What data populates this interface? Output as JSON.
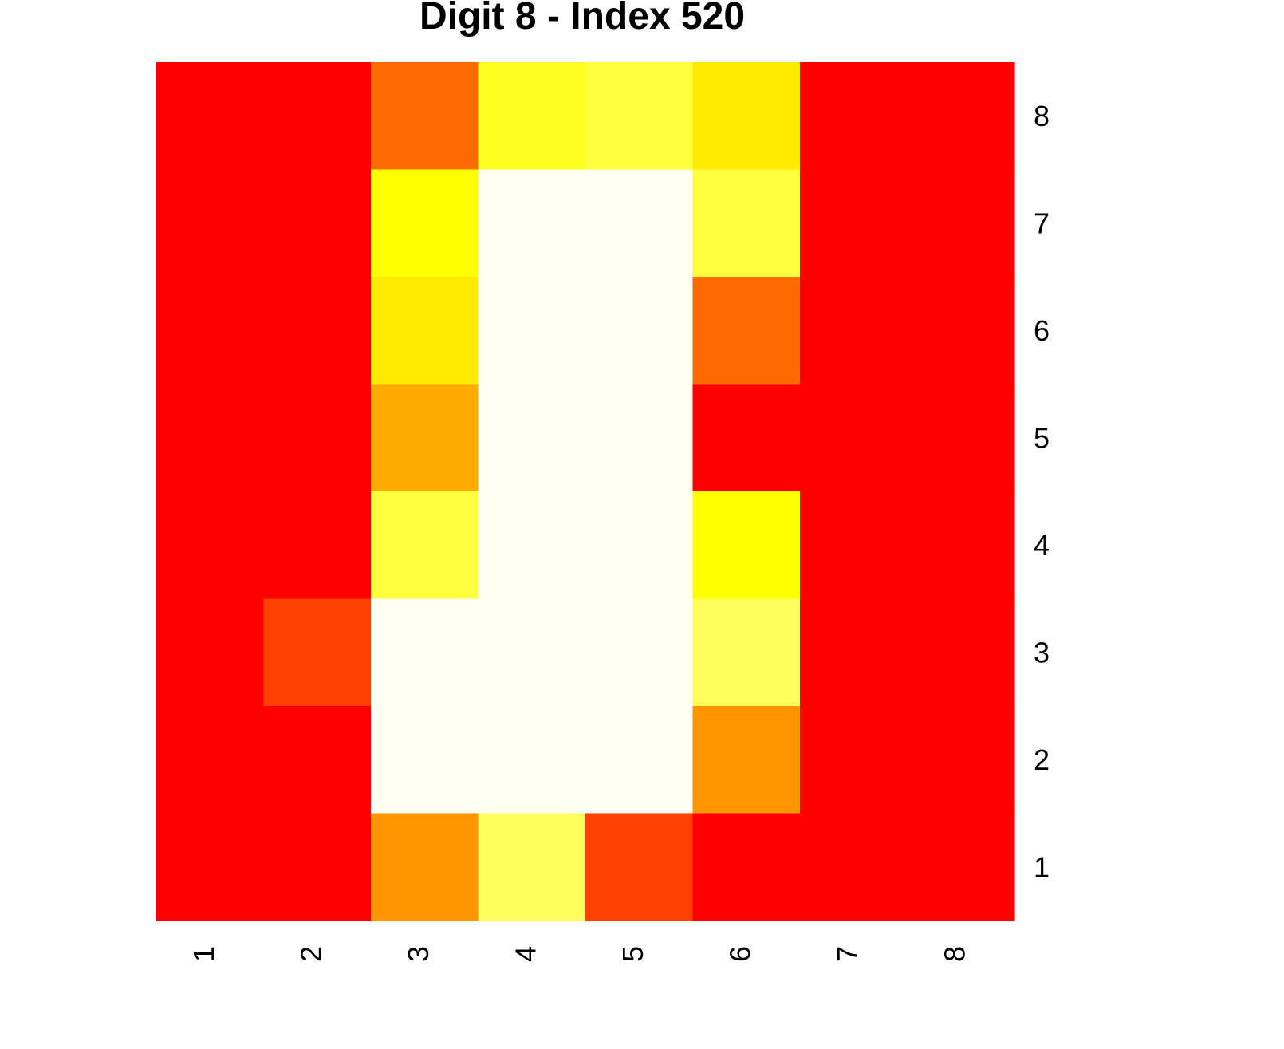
{
  "chart_data": {
    "type": "heatmap",
    "title": "Digit 8 - Index 520",
    "xlabel": "",
    "ylabel": "",
    "x_ticks": [
      "1",
      "2",
      "3",
      "4",
      "5",
      "6",
      "7",
      "8"
    ],
    "y_ticks": [
      "1",
      "2",
      "3",
      "4",
      "5",
      "6",
      "7",
      "8"
    ],
    "grid": false,
    "legend": "none",
    "colormap": "heat",
    "value_range": [
      0,
      16
    ],
    "rows_top_to_bottom": [
      [
        0,
        0,
        5,
        13,
        14,
        11,
        0,
        0
      ],
      [
        0,
        0,
        12,
        16,
        16,
        14,
        0,
        0
      ],
      [
        0,
        0,
        11,
        16,
        16,
        5,
        0,
        0
      ],
      [
        0,
        0,
        8,
        16,
        16,
        0,
        0,
        0
      ],
      [
        0,
        0,
        14,
        16,
        16,
        12,
        0,
        0
      ],
      [
        0,
        3,
        16,
        16,
        16,
        15,
        0,
        0
      ],
      [
        0,
        0,
        16,
        16,
        16,
        7,
        0,
        0
      ],
      [
        0,
        0,
        7,
        15,
        3,
        0,
        0,
        0
      ]
    ],
    "colors": {
      "low": "#ff0000",
      "high": "#fffff2"
    }
  }
}
